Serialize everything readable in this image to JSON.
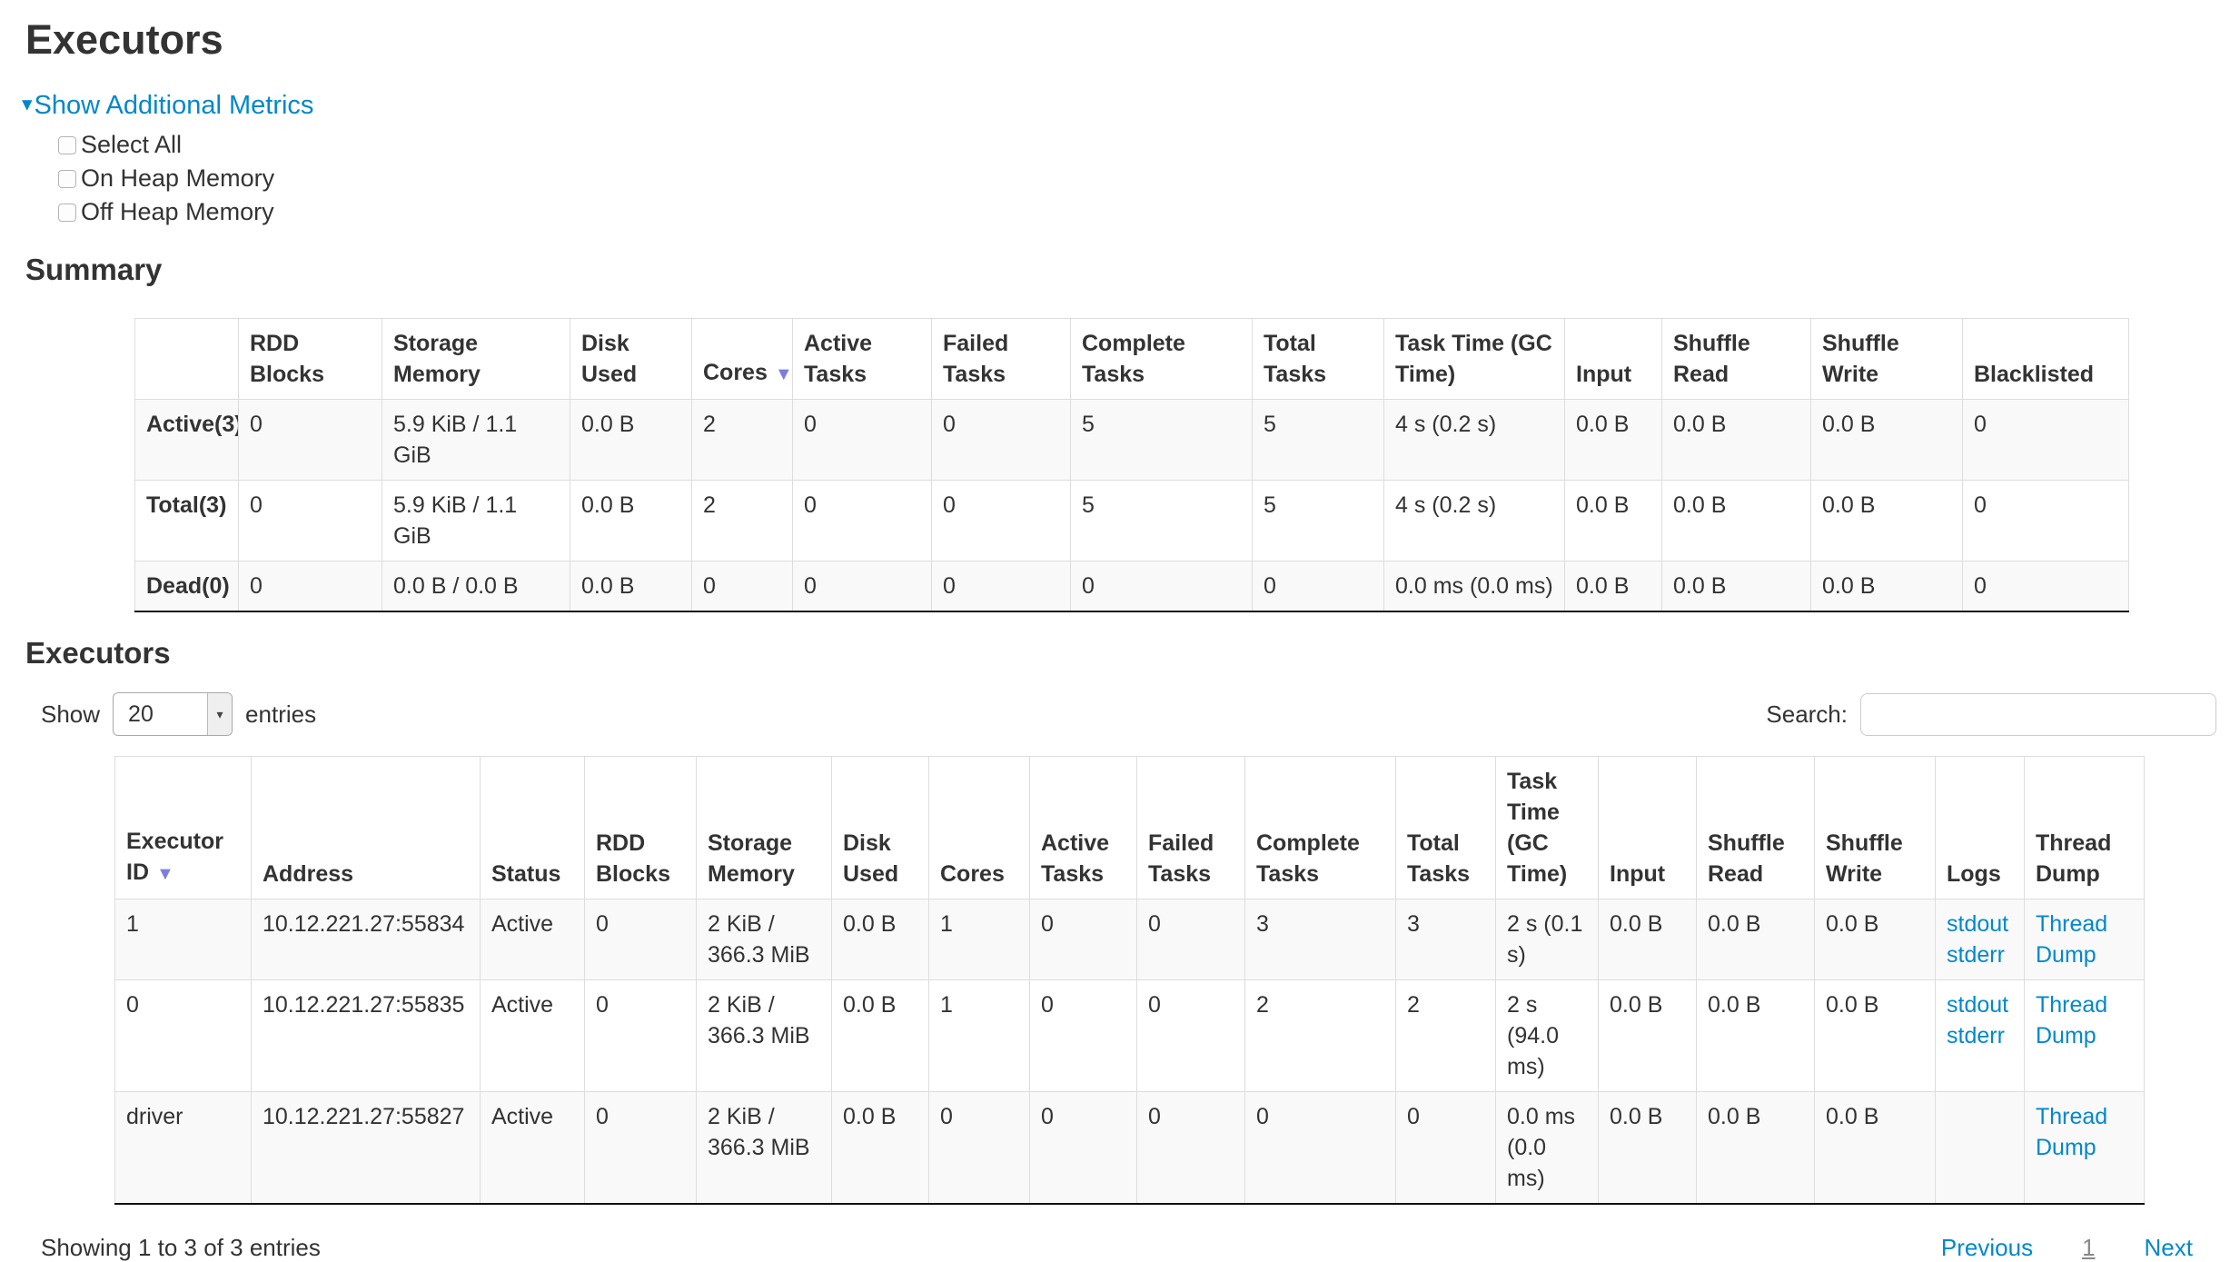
{
  "page_title": "Executors",
  "additional_metrics": {
    "toggle_label": "Show Additional Metrics",
    "options": [
      {
        "label": "Select All",
        "checked": false
      },
      {
        "label": "On Heap Memory",
        "checked": false
      },
      {
        "label": "Off Heap Memory",
        "checked": false
      }
    ]
  },
  "summary": {
    "heading": "Summary",
    "columns": [
      "",
      "RDD Blocks",
      "Storage Memory",
      "Disk Used",
      "Cores",
      "Active Tasks",
      "Failed Tasks",
      "Complete Tasks",
      "Total Tasks",
      "Task Time (GC Time)",
      "Input",
      "Shuffle Read",
      "Shuffle Write",
      "Blacklisted"
    ],
    "sort": {
      "column": "Cores",
      "direction": "desc",
      "col_index": 4
    },
    "rows": [
      {
        "label": "Active(3)",
        "values": [
          "0",
          "5.9 KiB / 1.1 GiB",
          "0.0 B",
          "2",
          "0",
          "0",
          "5",
          "5",
          "4 s (0.2 s)",
          "0.0 B",
          "0.0 B",
          "0.0 B",
          "0"
        ]
      },
      {
        "label": "Total(3)",
        "values": [
          "0",
          "5.9 KiB / 1.1 GiB",
          "0.0 B",
          "2",
          "0",
          "0",
          "5",
          "5",
          "4 s (0.2 s)",
          "0.0 B",
          "0.0 B",
          "0.0 B",
          "0"
        ]
      },
      {
        "label": "Dead(0)",
        "values": [
          "0",
          "0.0 B / 0.0 B",
          "0.0 B",
          "0",
          "0",
          "0",
          "0",
          "0",
          "0.0 ms (0.0 ms)",
          "0.0 B",
          "0.0 B",
          "0.0 B",
          "0"
        ]
      }
    ]
  },
  "executors_table": {
    "heading": "Executors",
    "length_control": {
      "prefix": "Show",
      "value": "20",
      "suffix": "entries"
    },
    "search": {
      "label": "Search:",
      "value": ""
    },
    "columns": [
      "Executor ID",
      "Address",
      "Status",
      "RDD Blocks",
      "Storage Memory",
      "Disk Used",
      "Cores",
      "Active Tasks",
      "Failed Tasks",
      "Complete Tasks",
      "Total Tasks",
      "Task Time (GC Time)",
      "Input",
      "Shuffle Read",
      "Shuffle Write",
      "Logs",
      "Thread Dump"
    ],
    "sort": {
      "column": "Executor ID",
      "direction": "desc",
      "col_index": 0
    },
    "rows": [
      {
        "cells": [
          "1",
          "10.12.221.27:55834",
          "Active",
          "0",
          "2 KiB / 366.3 MiB",
          "0.0 B",
          "1",
          "0",
          "0",
          "3",
          "3",
          "2 s (0.1 s)",
          "0.0 B",
          "0.0 B",
          "0.0 B"
        ],
        "logs": [
          "stdout",
          "stderr"
        ],
        "thread_dump": "Thread Dump"
      },
      {
        "cells": [
          "0",
          "10.12.221.27:55835",
          "Active",
          "0",
          "2 KiB / 366.3 MiB",
          "0.0 B",
          "1",
          "0",
          "0",
          "2",
          "2",
          "2 s (94.0 ms)",
          "0.0 B",
          "0.0 B",
          "0.0 B"
        ],
        "logs": [
          "stdout",
          "stderr"
        ],
        "thread_dump": "Thread Dump"
      },
      {
        "cells": [
          "driver",
          "10.12.221.27:55827",
          "Active",
          "0",
          "2 KiB / 366.3 MiB",
          "0.0 B",
          "0",
          "0",
          "0",
          "0",
          "0",
          "0.0 ms (0.0 ms)",
          "0.0 B",
          "0.0 B",
          "0.0 B"
        ],
        "logs": [],
        "thread_dump": "Thread Dump"
      }
    ],
    "info": "Showing 1 to 3 of 3 entries",
    "pagination": {
      "previous": "Previous",
      "current": "1",
      "next": "Next"
    }
  },
  "colors": {
    "link": "#0088cc",
    "sort_arrow": "#7d7de1",
    "stripe": "#f9f9f9",
    "border": "#dddddd",
    "text": "#333333"
  }
}
